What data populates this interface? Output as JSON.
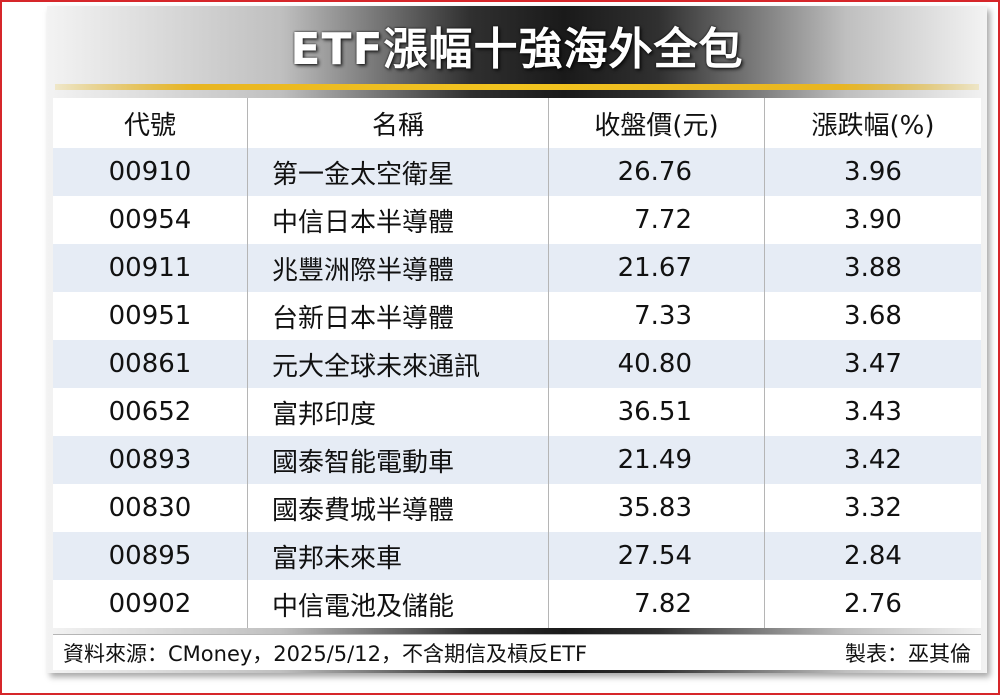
{
  "title": "ETF漲幅十強海外全包",
  "headers": {
    "code": "代號",
    "name": "名稱",
    "price": "收盤價(元)",
    "change": "漲跌幅(%)"
  },
  "rows": [
    {
      "code": "00910",
      "name": "第一金太空衛星",
      "price": "26.76",
      "change": "3.96"
    },
    {
      "code": "00954",
      "name": "中信日本半導體",
      "price": "7.72",
      "change": "3.90"
    },
    {
      "code": "00911",
      "name": "兆豐洲際半導體",
      "price": "21.67",
      "change": "3.88"
    },
    {
      "code": "00951",
      "name": "台新日本半導體",
      "price": "7.33",
      "change": "3.68"
    },
    {
      "code": "00861",
      "name": "元大全球未來通訊",
      "price": "40.80",
      "change": "3.47"
    },
    {
      "code": "00652",
      "name": "富邦印度",
      "price": "36.51",
      "change": "3.43"
    },
    {
      "code": "00893",
      "name": "國泰智能電動車",
      "price": "21.49",
      "change": "3.42"
    },
    {
      "code": "00830",
      "name": "國泰費城半導體",
      "price": "35.83",
      "change": "3.32"
    },
    {
      "code": "00895",
      "name": "富邦未來車",
      "price": "27.54",
      "change": "2.84"
    },
    {
      "code": "00902",
      "name": "中信電池及儲能",
      "price": "7.82",
      "change": "2.76"
    }
  ],
  "footer": {
    "source": "資料來源：CMoney，2025/5/12，不含期信及槓反ETF",
    "credit": "製表：巫其倫"
  },
  "colors": {
    "frame": "#d6262a",
    "gold_line": "#f3c51f",
    "row_stripe": "#e6ecf5"
  }
}
